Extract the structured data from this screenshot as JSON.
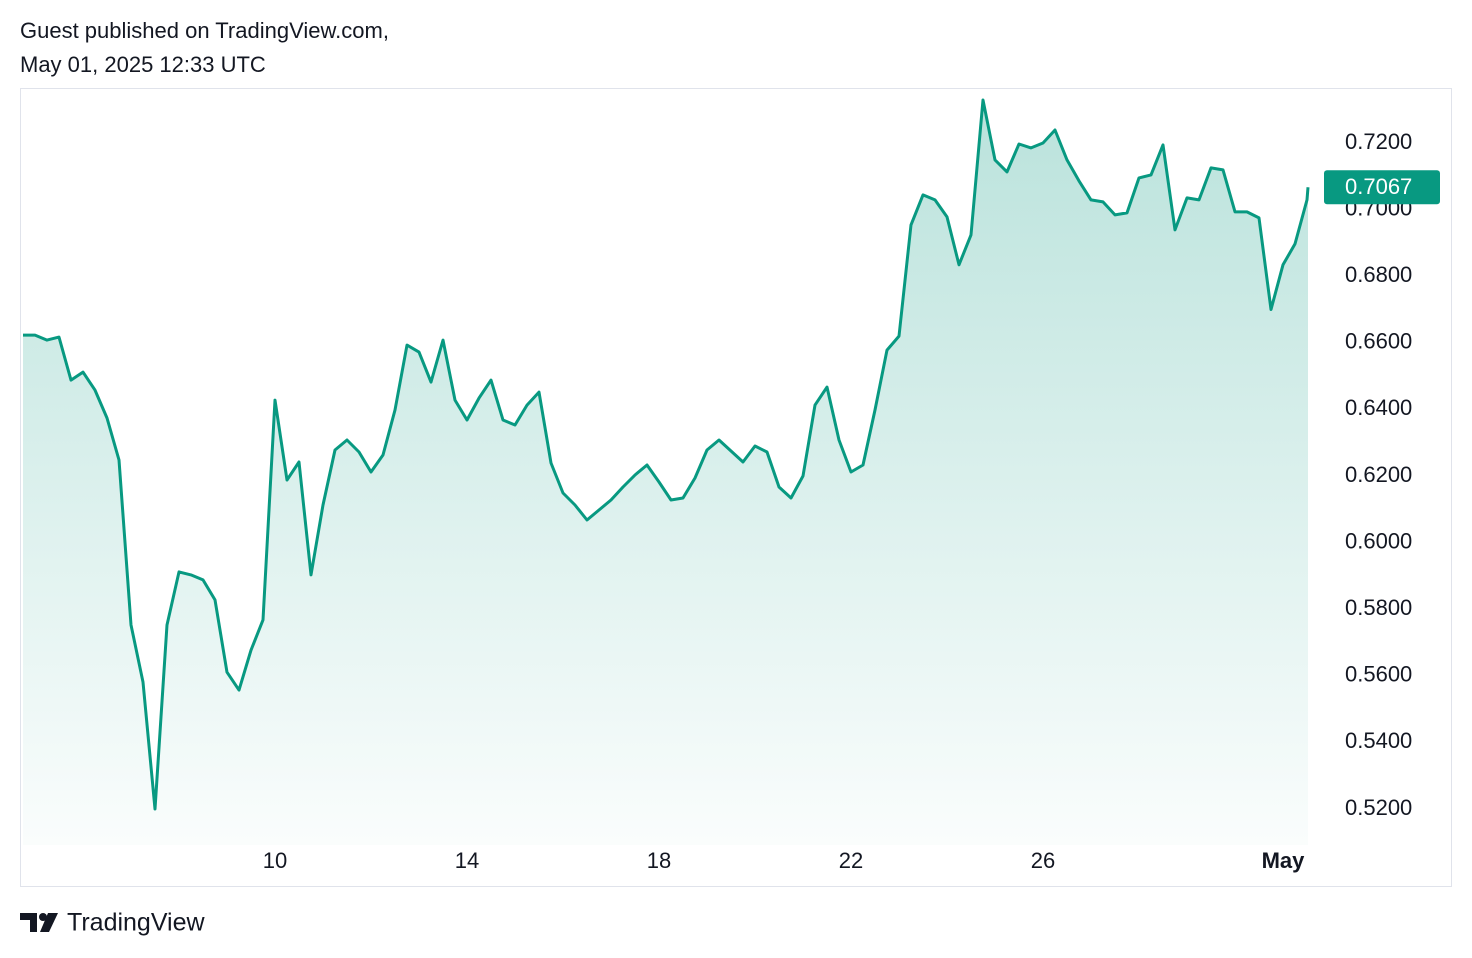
{
  "header": {
    "line1": "Guest published on TradingView.com,",
    "line2": "May 01, 2025 12:33 UTC"
  },
  "footer": {
    "brand": "TradingView"
  },
  "chart_data": {
    "type": "area",
    "color": "#089981",
    "x": [
      4.75,
      5,
      5.25,
      5.5,
      5.75,
      6,
      6.25,
      6.5,
      6.75,
      7,
      7.25,
      7.5,
      7.75,
      8,
      8.25,
      8.5,
      8.75,
      9,
      9.25,
      9.5,
      9.75,
      10,
      10.25,
      10.5,
      10.75,
      11,
      11.25,
      11.5,
      11.75,
      12,
      12.25,
      12.5,
      12.75,
      13,
      13.25,
      13.5,
      13.75,
      14,
      14.25,
      14.5,
      14.75,
      15,
      15.25,
      15.5,
      15.75,
      16,
      16.25,
      16.5,
      16.75,
      17,
      17.25,
      17.5,
      17.75,
      18,
      18.25,
      18.5,
      18.75,
      19,
      19.25,
      19.5,
      19.75,
      20,
      20.25,
      20.5,
      20.75,
      21,
      21.25,
      21.5,
      21.75,
      22,
      22.25,
      22.5,
      22.75,
      23,
      23.25,
      23.5,
      23.75,
      24,
      24.25,
      24.5,
      24.75,
      25,
      25.25,
      25.5,
      25.75,
      26,
      26.25,
      26.5,
      26.75,
      27,
      27.25,
      27.5,
      27.75,
      28,
      28.25,
      28.5,
      28.75,
      29,
      29.25,
      29.5,
      29.75,
      30,
      30.25,
      30.5,
      30.75,
      31,
      31.25,
      31.5,
      31.52
    ],
    "values": [
      0.6623,
      0.6623,
      0.6608,
      0.6617,
      0.6488,
      0.6512,
      0.6458,
      0.6374,
      0.6248,
      0.5753,
      0.5581,
      0.52,
      0.5753,
      0.5912,
      0.5903,
      0.5888,
      0.5828,
      0.5611,
      0.5557,
      0.5677,
      0.5768,
      0.6428,
      0.6188,
      0.6242,
      0.5903,
      0.6113,
      0.6278,
      0.6308,
      0.6272,
      0.6212,
      0.6263,
      0.6398,
      0.6593,
      0.6572,
      0.6482,
      0.6608,
      0.6428,
      0.6368,
      0.6434,
      0.6488,
      0.6368,
      0.6353,
      0.6413,
      0.6452,
      0.6239,
      0.6149,
      0.6113,
      0.6068,
      0.6098,
      0.6128,
      0.6167,
      0.6203,
      0.6233,
      0.6182,
      0.6128,
      0.6134,
      0.6194,
      0.6278,
      0.6308,
      0.6275,
      0.6242,
      0.629,
      0.6272,
      0.6167,
      0.6134,
      0.62,
      0.6413,
      0.6467,
      0.6308,
      0.6212,
      0.6233,
      0.6398,
      0.6578,
      0.662,
      0.6954,
      0.7044,
      0.7029,
      0.6978,
      0.6834,
      0.6924,
      0.7329,
      0.7149,
      0.7113,
      0.7197,
      0.7185,
      0.72,
      0.7239,
      0.7149,
      0.7086,
      0.7029,
      0.7023,
      0.6984,
      0.699,
      0.7095,
      0.7104,
      0.7194,
      0.6939,
      0.7035,
      0.7029,
      0.7125,
      0.7119,
      0.6993,
      0.6993,
      0.6975,
      0.67,
      0.6834,
      0.6897,
      0.7029,
      0.7067
    ],
    "last_label": "0.7067",
    "xlim": [
      4.6875,
      31.604
    ],
    "xticks": [
      10,
      14,
      18,
      22,
      26,
      {
        "value": 31,
        "label": "May"
      }
    ],
    "ylim": [
      0.5092,
      0.7365
    ],
    "yticks": [
      {
        "value": 0.52,
        "label": "0.5200"
      },
      {
        "value": 0.54,
        "label": "0.5400"
      },
      {
        "value": 0.56,
        "label": "0.5600"
      },
      {
        "value": 0.58,
        "label": "0.5800"
      },
      {
        "value": 0.6,
        "label": "0.6000"
      },
      {
        "value": 0.62,
        "label": "0.6200"
      },
      {
        "value": 0.64,
        "label": "0.6400"
      },
      {
        "value": 0.66,
        "label": "0.6600"
      },
      {
        "value": 0.68,
        "label": "0.6800"
      },
      {
        "value": 0.7,
        "label": "0.7000"
      },
      {
        "value": 0.72,
        "label": "0.7200"
      }
    ]
  }
}
